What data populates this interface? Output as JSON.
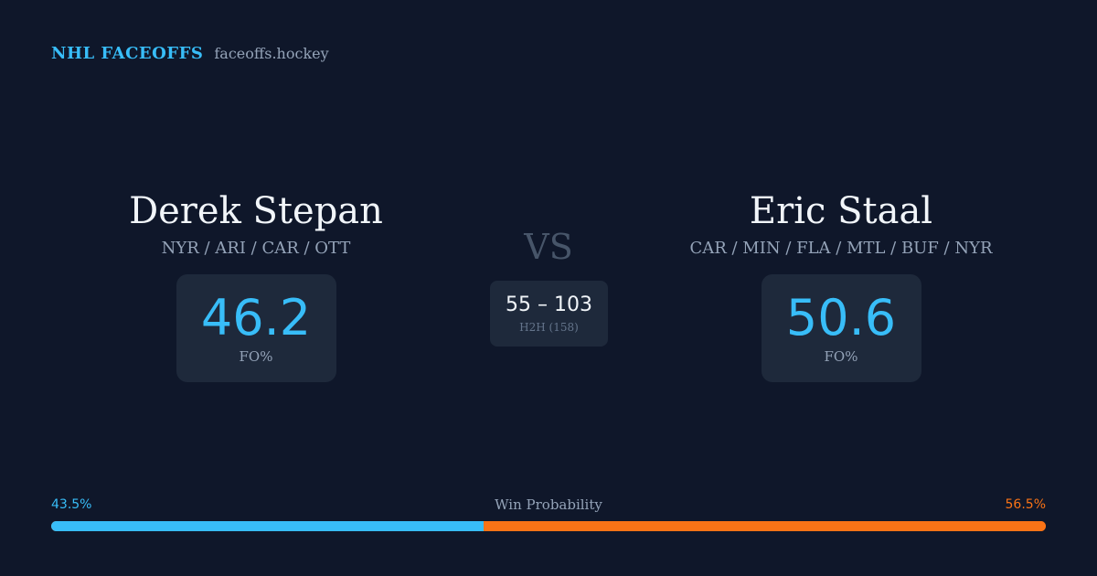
{
  "header": {
    "brand": "NHL FACEOFFS",
    "domain": "faceoffs.hockey"
  },
  "player1": {
    "name": "Derek Stepan",
    "teams": "NYR / ARI / CAR / OTT",
    "fo_pct": "46.2",
    "fo_label": "FO%"
  },
  "player2": {
    "name": "Eric Staal",
    "teams": "CAR / MIN / FLA / MTL / BUF / NYR",
    "fo_pct": "50.6",
    "fo_label": "FO%"
  },
  "vs": "VS",
  "h2h": {
    "score": "55 – 103",
    "label": "H2H (158)"
  },
  "win_probability": {
    "title": "Win Probability",
    "left_label": "43.5%",
    "right_label": "56.5%",
    "left_fraction": 0.435,
    "left_color": "#38bdf8",
    "right_color": "#f97316"
  },
  "colors": {
    "background": "#0f172a",
    "card": "#1e293b",
    "accent": "#38bdf8",
    "muted": "#94a3b8"
  }
}
